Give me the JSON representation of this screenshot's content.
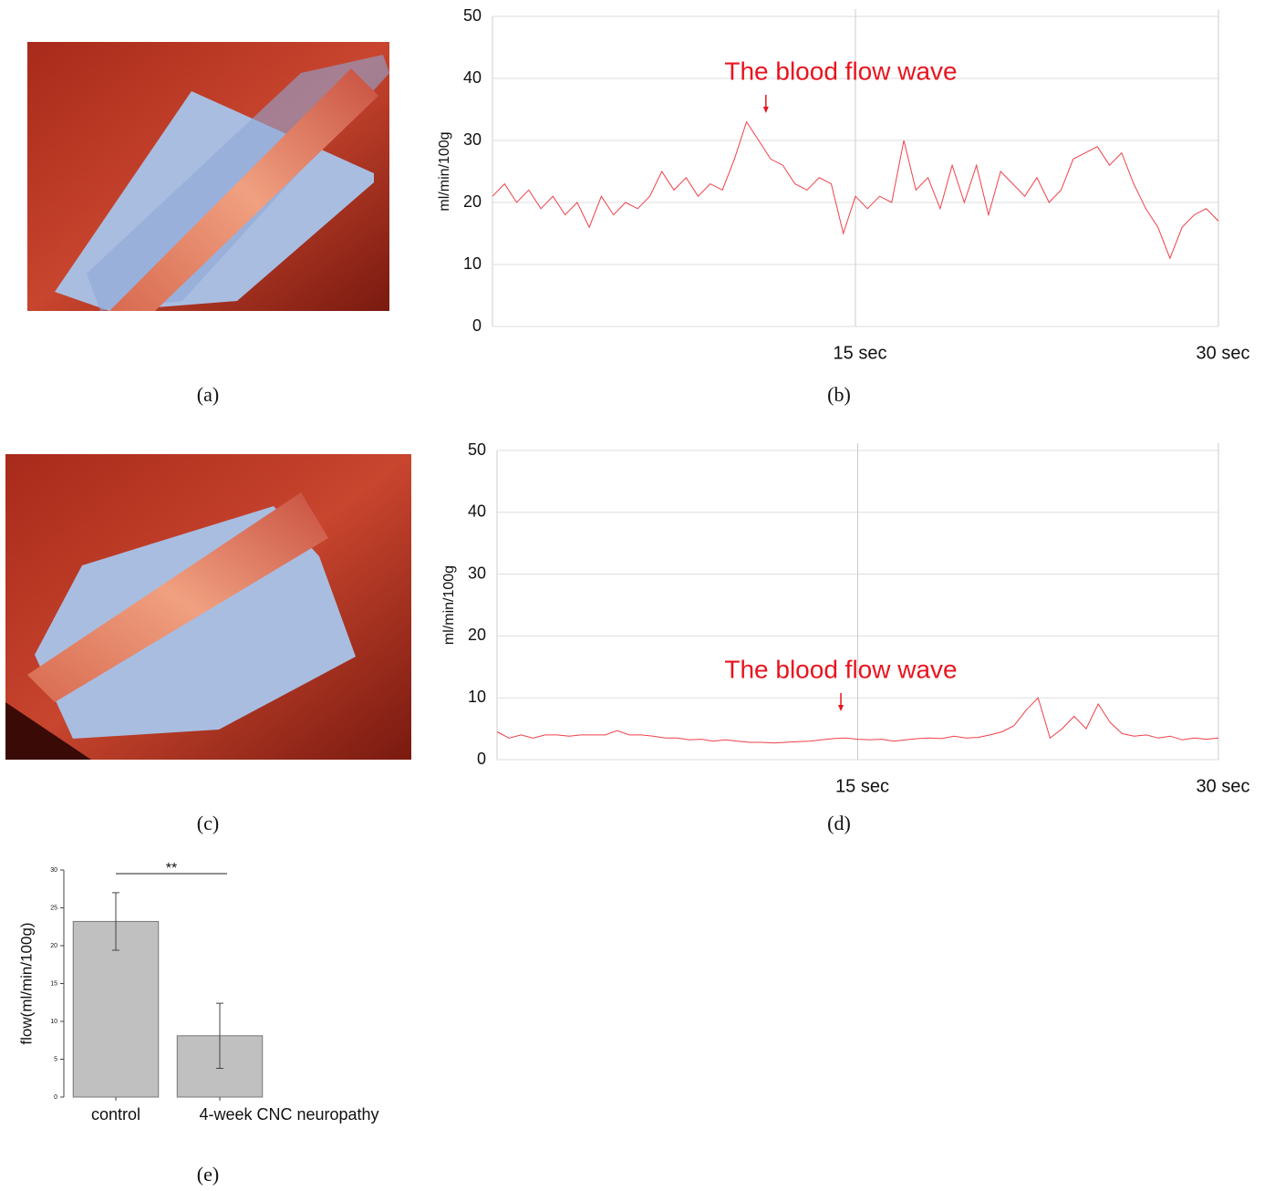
{
  "captions": [
    "(a)",
    "(b)",
    "(c)",
    "(d)",
    "(e)"
  ],
  "chart_data": [
    {
      "type": "line",
      "y_label": "ml/min/100g",
      "annotation": "The blood flow wave",
      "color": "#f0404a",
      "x": [
        0,
        0.5,
        1,
        1.5,
        2,
        2.5,
        3,
        3.5,
        4,
        4.5,
        5,
        5.5,
        6,
        6.5,
        7,
        7.5,
        8,
        8.5,
        9,
        9.5,
        10,
        10.5,
        11,
        11.5,
        12,
        12.5,
        13,
        13.5,
        14,
        14.5,
        15,
        15.5,
        16,
        16.5,
        17,
        17.5,
        18,
        18.5,
        19,
        19.5,
        20,
        20.5,
        21,
        21.5,
        22,
        22.5,
        23,
        23.5,
        24,
        24.5,
        25,
        25.5,
        26,
        26.5,
        27,
        27.5,
        28,
        28.5,
        29,
        29.5,
        30
      ],
      "values": [
        21,
        23,
        20,
        22,
        19,
        21,
        18,
        20,
        16,
        21,
        18,
        20,
        19,
        21,
        25,
        22,
        24,
        21,
        23,
        22,
        27,
        33,
        30,
        27,
        26,
        23,
        22,
        24,
        23,
        15,
        21,
        19,
        21,
        20,
        30,
        22,
        24,
        19,
        26,
        20,
        26,
        18,
        25,
        23,
        21,
        24,
        20,
        22,
        27,
        28,
        29,
        26,
        28,
        23,
        19,
        16,
        11,
        16,
        18,
        19,
        17
      ],
      "xlim": [
        0,
        30
      ],
      "xticks": [
        {
          "value": 15,
          "label": "15 sec"
        },
        {
          "value": 30,
          "label": "30 sec"
        }
      ],
      "ylim": [
        0,
        50
      ],
      "yticks": [
        0,
        10,
        20,
        30,
        40,
        50
      ],
      "grid": true
    },
    {
      "type": "line",
      "y_label": "ml/min/100g",
      "annotation": "The blood flow wave",
      "color": "#f0404a",
      "x": [
        0,
        0.5,
        1,
        1.5,
        2,
        2.5,
        3,
        3.5,
        4,
        4.5,
        5,
        5.5,
        6,
        6.5,
        7,
        7.5,
        8,
        8.5,
        9,
        9.5,
        10,
        10.5,
        11,
        11.5,
        12,
        12.5,
        13,
        13.5,
        14,
        14.5,
        15,
        15.5,
        16,
        16.5,
        17,
        17.5,
        18,
        18.5,
        19,
        19.5,
        20,
        20.5,
        21,
        21.5,
        22,
        22.5,
        23,
        23.5,
        24,
        24.5,
        25,
        25.5,
        26,
        26.5,
        27,
        27.5,
        28,
        28.5,
        29,
        29.5,
        30
      ],
      "values": [
        4.5,
        3.5,
        4,
        3.5,
        4,
        4,
        3.8,
        4,
        4,
        4,
        4.7,
        4,
        4,
        3.8,
        3.5,
        3.5,
        3.2,
        3.3,
        3,
        3.2,
        3,
        2.8,
        2.8,
        2.7,
        2.8,
        2.9,
        3,
        3.2,
        3.4,
        3.5,
        3.3,
        3.2,
        3.3,
        3,
        3.2,
        3.4,
        3.5,
        3.4,
        3.8,
        3.5,
        3.6,
        4,
        4.5,
        5.5,
        8,
        10,
        3.5,
        5,
        7,
        5,
        9,
        6,
        4.2,
        3.8,
        4,
        3.5,
        3.8,
        3.2,
        3.5,
        3.3,
        3.5
      ],
      "xlim": [
        0,
        30
      ],
      "xticks": [
        {
          "value": 15,
          "label": "15 sec"
        },
        {
          "value": 30,
          "label": "30 sec"
        }
      ],
      "ylim": [
        0,
        50
      ],
      "yticks": [
        0,
        10,
        20,
        30,
        40,
        50
      ],
      "grid": true
    },
    {
      "type": "bar",
      "y_label": "flow(ml/min/100g)",
      "annotation": "**",
      "color": "#c0c0c0",
      "categories": [
        "control",
        "4-week CNC neuropathy"
      ],
      "values": [
        23.2,
        8.1
      ],
      "errors": [
        3.8,
        4.3
      ],
      "ylim": [
        0,
        30
      ],
      "yticks": [
        0,
        5,
        10,
        15,
        20,
        25,
        30
      ],
      "grid": false
    }
  ]
}
